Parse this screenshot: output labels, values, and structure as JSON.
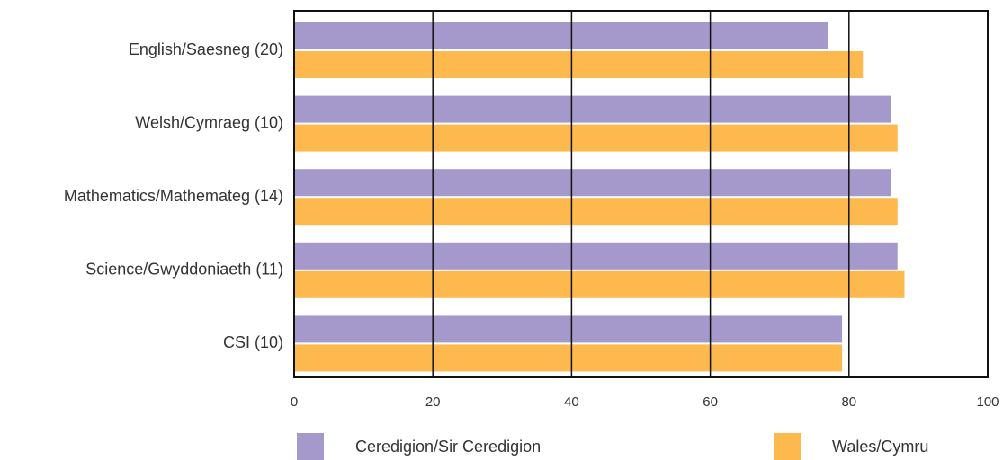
{
  "chart_data": {
    "type": "bar",
    "orientation": "horizontal",
    "categories": [
      "English/Saesneg (20)",
      "Welsh/Cymraeg (10)",
      "Mathematics/Mathemateg (14)",
      "Science/Gwyddoniaeth (11)",
      "CSI (10)"
    ],
    "series": [
      {
        "name": "Ceredigion/Sir Ceredigion",
        "color": "#a599cc",
        "values": [
          77,
          86,
          86,
          87,
          79
        ]
      },
      {
        "name": "Wales/Cymru",
        "color": "#fdb94e",
        "values": [
          82,
          87,
          87,
          88,
          79
        ]
      }
    ],
    "xlim": [
      0,
      100
    ],
    "xticks": [
      0,
      20,
      40,
      60,
      80,
      100
    ],
    "grid": true
  }
}
